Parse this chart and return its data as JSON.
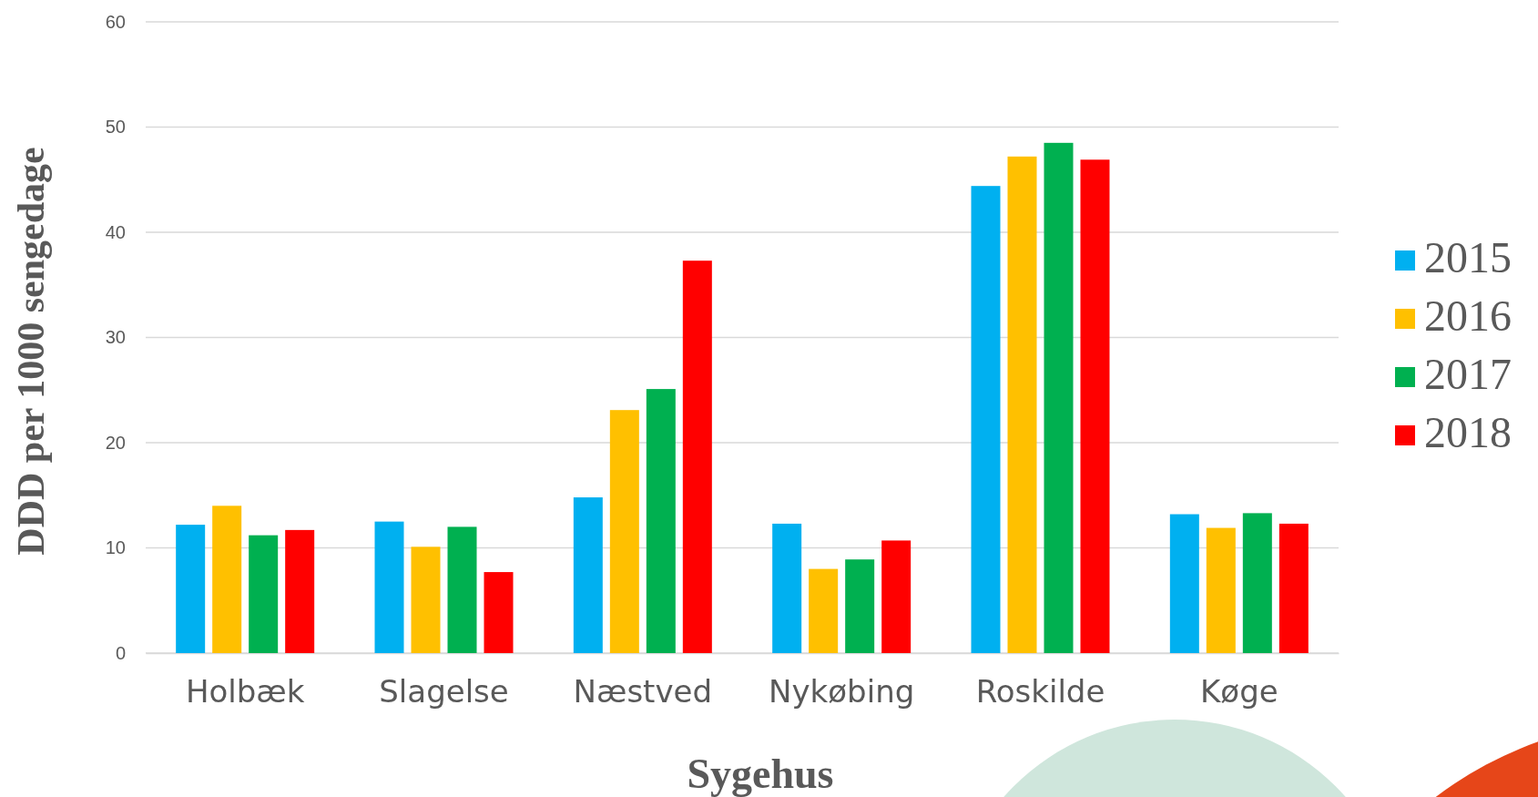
{
  "chart_data": {
    "type": "bar",
    "xlabel": "Sygehus",
    "ylabel": "DDD per 1000 sengedage",
    "categories": [
      "Holbæk",
      "Slagelse",
      "Næstved",
      "Nykøbing",
      "Roskilde",
      "Køge"
    ],
    "series": [
      {
        "name": "2015",
        "color": "#00b0f0",
        "values": [
          12.2,
          12.5,
          14.8,
          12.3,
          44.4,
          13.2
        ]
      },
      {
        "name": "2016",
        "color": "#ffc000",
        "values": [
          14.0,
          10.1,
          23.1,
          8.0,
          47.2,
          11.9
        ]
      },
      {
        "name": "2017",
        "color": "#00b050",
        "values": [
          11.2,
          12.0,
          25.1,
          8.9,
          48.5,
          13.3
        ]
      },
      {
        "name": "2018",
        "color": "#ff0000",
        "values": [
          11.7,
          7.7,
          37.3,
          10.7,
          46.9,
          12.3
        ]
      }
    ],
    "ylim": [
      0,
      60
    ],
    "yticks": [
      0,
      10,
      20,
      30,
      40,
      50,
      60
    ],
    "grid": "y",
    "legend": "right"
  }
}
